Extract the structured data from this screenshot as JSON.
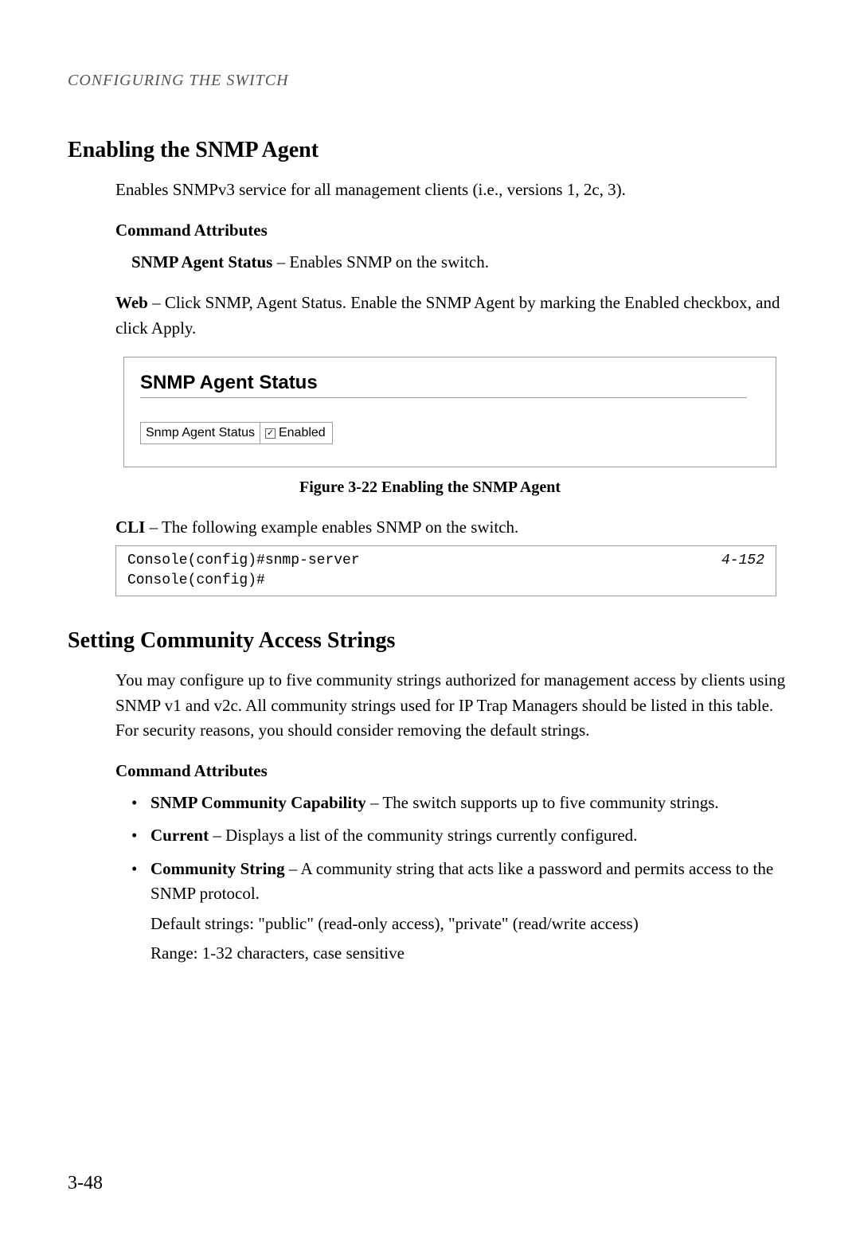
{
  "running_head": "CONFIGURING THE SWITCH",
  "section1": {
    "heading": "Enabling the SNMP Agent",
    "intro": "Enables SNMPv3 service for all management clients (i.e., versions 1, 2c, 3).",
    "cmd_attr_heading": "Command Attributes",
    "attr_bold": "SNMP Agent Status",
    "attr_rest": " – Enables SNMP on the switch.",
    "web_bold": "Web",
    "web_rest": " – Click SNMP, Agent Status. Enable the SNMP Agent by marking the Enabled checkbox, and click Apply."
  },
  "figure": {
    "panel_title": "SNMP Agent Status",
    "row_label": "Snmp Agent Status",
    "checkbox_checked": true,
    "checkbox_label": "Enabled",
    "caption": "Figure 3-22  Enabling the SNMP Agent"
  },
  "cli": {
    "lead_bold": "CLI",
    "lead_rest": " – The following example enables SNMP on the switch.",
    "line1": "Console(config)#snmp-server",
    "line2": "Console(config)#",
    "ref": "4-152"
  },
  "section2": {
    "heading": "Setting Community Access Strings",
    "intro": "You may configure up to five community strings authorized for management access by clients using SNMP v1 and v2c. All community strings used for IP Trap Managers should be listed in this table. For security reasons, you should consider removing the default strings.",
    "cmd_attr_heading": "Command Attributes",
    "bullets": [
      {
        "bold": "SNMP Community Capability",
        "rest": " – The switch supports up to five community strings."
      },
      {
        "bold": "Current",
        "rest": " – Displays a list of the community strings currently configured."
      },
      {
        "bold": "Community String",
        "rest": " – A community string that acts like a password and permits access to the SNMP protocol.",
        "sub1": "Default strings: \"public\" (read-only access), \"private\" (read/write access)",
        "sub2": "Range: 1-32 characters, case sensitive"
      }
    ]
  },
  "page_number": "3-48"
}
